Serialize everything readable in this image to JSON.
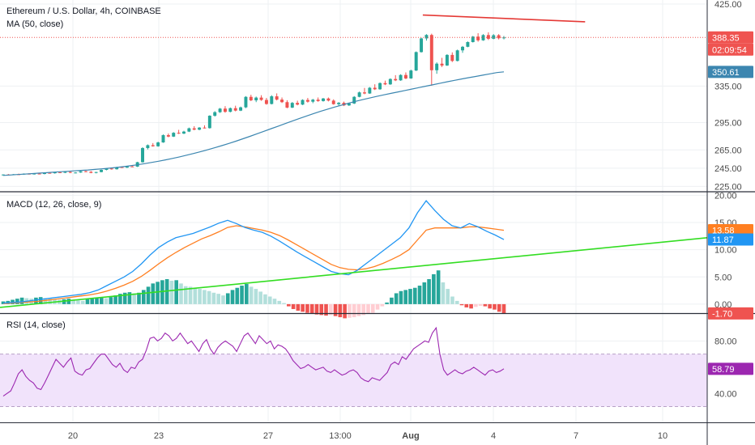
{
  "header": {
    "title": "Ethereum / U.S. Dollar, 4h, COINBASE",
    "ma_label": "MA (50, close)"
  },
  "macd_label": "MACD (12, 26, close, 9)",
  "rsi_label": "RSI (14, close)",
  "price_tags": {
    "last": "388.35",
    "countdown": "02:09:54",
    "ma": "350.61",
    "signal": "13.58",
    "macd": "11.87",
    "hist": "-1.70",
    "rsi": "58.79"
  },
  "colors": {
    "up": "#26a69a",
    "down": "#ef5350",
    "ma": "#3c86b0",
    "macd_line": "#2196f3",
    "signal_line": "#ff7f21",
    "rsi_line": "#9c27b0",
    "rsi_band": "#f1e3fb",
    "trend_red": "#e53935",
    "trend_green": "#33dd22",
    "rsi_tag": "#9c27b0"
  },
  "chart_data": [
    {
      "type": "candlestick",
      "panel": "price",
      "title": "Ethereum / U.S. Dollar, 4h, COINBASE",
      "y_ticks": [
        "425.00",
        "335.00",
        "295.00",
        "265.00",
        "245.00",
        "225.00"
      ],
      "x_ticks": [
        "20",
        "23",
        "27",
        "13:00",
        "Aug",
        "4",
        "7",
        "10"
      ],
      "candles": [
        [
          237.5,
          238.2,
          237.0,
          238.0
        ],
        [
          238.0,
          238.5,
          237.3,
          237.8
        ],
        [
          237.8,
          238.6,
          237.4,
          238.3
        ],
        [
          238.3,
          239.0,
          237.9,
          238.0
        ],
        [
          238.0,
          239.2,
          237.8,
          238.9
        ],
        [
          238.9,
          239.4,
          238.1,
          238.5
        ],
        [
          238.5,
          239.2,
          238.0,
          239.0
        ],
        [
          239.0,
          239.6,
          238.3,
          238.6
        ],
        [
          238.6,
          240.2,
          238.2,
          239.8
        ],
        [
          239.8,
          240.5,
          239.1,
          239.4
        ],
        [
          239.4,
          240.8,
          239.0,
          240.5
        ],
        [
          240.5,
          241.2,
          240.0,
          240.3
        ],
        [
          240.3,
          241.0,
          239.6,
          240.8
        ],
        [
          240.8,
          241.5,
          239.5,
          239.9
        ],
        [
          239.9,
          240.6,
          239.3,
          240.2
        ],
        [
          240.2,
          242.0,
          239.9,
          241.6
        ],
        [
          241.6,
          242.2,
          240.6,
          241.0
        ],
        [
          241.0,
          241.8,
          239.4,
          239.8
        ],
        [
          239.8,
          241.0,
          239.3,
          240.7
        ],
        [
          240.7,
          243.5,
          240.4,
          243.1
        ],
        [
          243.1,
          245.0,
          242.6,
          244.6
        ],
        [
          244.6,
          245.3,
          243.3,
          243.8
        ],
        [
          243.8,
          246.5,
          243.4,
          246.1
        ],
        [
          246.1,
          247.0,
          245.2,
          245.6
        ],
        [
          245.6,
          247.3,
          245.2,
          246.9
        ],
        [
          246.9,
          248.0,
          246.2,
          246.7
        ],
        [
          246.7,
          252.0,
          246.3,
          251.5
        ],
        [
          251.5,
          268.0,
          251.0,
          267.0
        ],
        [
          267.0,
          271.0,
          265.5,
          270.2
        ],
        [
          270.2,
          272.5,
          268.6,
          269.0
        ],
        [
          269.0,
          274.0,
          268.5,
          273.2
        ],
        [
          273.2,
          282.0,
          272.8,
          281.2
        ],
        [
          281.2,
          283.0,
          278.9,
          279.6
        ],
        [
          279.6,
          284.5,
          279.2,
          283.8
        ],
        [
          283.8,
          287.0,
          282.5,
          282.9
        ],
        [
          282.9,
          286.0,
          282.4,
          285.1
        ],
        [
          285.1,
          289.5,
          284.6,
          288.7
        ],
        [
          288.7,
          291.0,
          286.6,
          287.2
        ],
        [
          287.2,
          290.0,
          286.6,
          289.5
        ],
        [
          289.5,
          292.0,
          288.5,
          288.9
        ],
        [
          288.9,
          303.0,
          288.4,
          302.5
        ],
        [
          302.5,
          307.5,
          301.5,
          306.4
        ],
        [
          306.4,
          311.0,
          305.6,
          310.3
        ],
        [
          310.3,
          313.0,
          305.8,
          306.8
        ],
        [
          306.8,
          311.5,
          306.2,
          310.8
        ],
        [
          310.8,
          313.5,
          307.3,
          308.1
        ],
        [
          308.1,
          312.5,
          307.6,
          311.7
        ],
        [
          311.7,
          324.0,
          310.8,
          323.2
        ],
        [
          323.2,
          325.5,
          318.5,
          319.4
        ],
        [
          319.4,
          323.5,
          317.4,
          322.4
        ],
        [
          322.4,
          325.0,
          318.9,
          319.8
        ],
        [
          319.8,
          322.0,
          314.6,
          315.4
        ],
        [
          315.4,
          325.0,
          314.9,
          323.8
        ],
        [
          323.8,
          327.0,
          319.3,
          320.2
        ],
        [
          320.2,
          322.5,
          316.5,
          317.4
        ],
        [
          317.4,
          319.5,
          310.7,
          311.4
        ],
        [
          311.4,
          317.5,
          310.9,
          316.6
        ],
        [
          316.6,
          319.0,
          313.9,
          314.7
        ],
        [
          314.7,
          320.5,
          314.2,
          319.8
        ],
        [
          319.8,
          322.0,
          316.9,
          317.9
        ],
        [
          317.9,
          321.0,
          316.3,
          320.1
        ],
        [
          320.1,
          322.5,
          317.8,
          318.6
        ],
        [
          318.6,
          322.0,
          318.0,
          321.4
        ],
        [
          321.4,
          322.5,
          318.2,
          319.1
        ],
        [
          319.1,
          320.5,
          314.6,
          315.2
        ],
        [
          315.2,
          317.5,
          313.3,
          316.7
        ],
        [
          316.7,
          318.0,
          313.1,
          313.8
        ],
        [
          313.8,
          316.5,
          313.3,
          315.9
        ],
        [
          315.9,
          324.0,
          315.4,
          323.2
        ],
        [
          323.2,
          329.0,
          322.7,
          328.1
        ],
        [
          328.1,
          333.0,
          326.1,
          326.9
        ],
        [
          326.9,
          334.0,
          326.5,
          333.2
        ],
        [
          333.2,
          337.0,
          330.7,
          331.5
        ],
        [
          331.5,
          339.0,
          331.0,
          338.3
        ],
        [
          338.3,
          341.0,
          336.1,
          336.9
        ],
        [
          336.9,
          343.5,
          336.4,
          342.8
        ],
        [
          342.8,
          347.0,
          340.5,
          341.3
        ],
        [
          341.3,
          348.0,
          340.8,
          347.2
        ],
        [
          347.2,
          350.0,
          342.6,
          343.4
        ],
        [
          343.4,
          353.0,
          343.0,
          352.1
        ],
        [
          352.1,
          373.0,
          351.5,
          372.3
        ],
        [
          372.3,
          388.0,
          371.8,
          387.3
        ],
        [
          387.3,
          392.0,
          384.9,
          391.1
        ],
        [
          391.1,
          392.5,
          335.5,
          352.4
        ],
        [
          352.4,
          361.0,
          348.5,
          359.6
        ],
        [
          359.6,
          366.0,
          355.9,
          357.6
        ],
        [
          357.6,
          370.0,
          357.1,
          369.2
        ],
        [
          369.2,
          372.0,
          361.4,
          362.6
        ],
        [
          362.6,
          375.0,
          362.1,
          374.2
        ],
        [
          374.2,
          379.0,
          371.5,
          378.1
        ],
        [
          378.1,
          384.0,
          377.6,
          383.3
        ],
        [
          383.3,
          390.0,
          382.8,
          389.3
        ],
        [
          389.3,
          393.0,
          383.7,
          385.2
        ],
        [
          385.2,
          392.0,
          384.7,
          391.0
        ],
        [
          391.0,
          394.0,
          385.6,
          386.9
        ],
        [
          386.9,
          392.0,
          386.4,
          390.8
        ],
        [
          390.8,
          392.0,
          386.2,
          387.5
        ],
        [
          387.5,
          390.0,
          386.3,
          388.35
        ]
      ],
      "ma50": [
        237.0,
        237.5,
        238.0,
        238.5,
        239.0,
        239.5,
        240.0,
        240.5,
        241.0,
        241.5,
        242.0,
        242.5,
        243.0,
        243.6,
        244.2,
        244.9,
        245.7,
        246.6,
        247.6,
        248.7,
        249.9,
        251.2,
        252.6,
        254.1,
        255.7,
        257.4,
        259.2,
        261.1,
        263.1,
        265.2,
        267.4,
        269.7,
        272.1,
        274.6,
        277.2,
        279.9,
        282.7,
        285.5,
        288.3,
        291.1,
        293.9,
        296.7,
        299.5,
        302.2,
        304.8,
        307.3,
        309.7,
        312.0,
        314.2,
        316.3,
        318.3,
        320.2,
        322.0,
        323.7,
        325.4,
        327.0,
        328.6,
        330.2,
        331.8,
        333.4,
        335.0,
        336.6,
        338.2,
        339.8,
        341.3,
        342.8,
        344.2,
        345.6,
        347.0,
        348.4,
        349.8,
        350.61
      ],
      "last_price": 388.35,
      "ma_value": 350.61,
      "resistance_trendline": [
        [
          0.56,
          413.0
        ],
        [
          0.775,
          405.5
        ]
      ]
    },
    {
      "type": "macd",
      "panel": "macd",
      "title": "MACD (12, 26, close, 9)",
      "y_ticks": [
        "20.00",
        "15.00",
        "10.00",
        "5.00",
        "0.00"
      ],
      "macd": [
        0.2,
        0.3,
        0.4,
        0.6,
        0.8,
        1.0,
        1.2,
        1.4,
        1.6,
        1.8,
        2.1,
        2.6,
        3.4,
        4.2,
        5.0,
        6.0,
        7.4,
        9.0,
        10.4,
        11.4,
        12.2,
        12.6,
        13.0,
        13.6,
        14.2,
        14.9,
        15.4,
        14.8,
        14.1,
        13.6,
        13.2,
        12.5,
        11.6,
        10.6,
        9.6,
        8.7,
        7.8,
        6.9,
        6.0,
        5.6,
        5.4,
        6.2,
        7.4,
        8.6,
        9.8,
        11.0,
        12.2,
        14.0,
        16.8,
        19.0,
        17.2,
        15.6,
        14.4,
        14.0,
        14.8,
        14.2,
        13.4,
        12.7,
        11.87
      ],
      "signal": [
        0.1,
        0.2,
        0.3,
        0.4,
        0.5,
        0.7,
        0.9,
        1.1,
        1.3,
        1.5,
        1.7,
        2.0,
        2.4,
        2.9,
        3.5,
        4.2,
        5.1,
        6.2,
        7.4,
        8.5,
        9.5,
        10.4,
        11.2,
        12.0,
        12.6,
        13.3,
        14.1,
        14.4,
        14.2,
        13.9,
        13.6,
        13.2,
        12.6,
        11.8,
        10.9,
        10.0,
        9.1,
        8.2,
        7.3,
        6.7,
        6.4,
        6.3,
        6.5,
        6.9,
        7.5,
        8.2,
        9.0,
        10.0,
        11.8,
        13.6,
        14.0,
        14.0,
        14.0,
        14.0,
        14.2,
        14.2,
        14.0,
        13.8,
        13.58
      ],
      "histogram": [
        0.5,
        0.6,
        0.8,
        1.0,
        1.2,
        1.1,
        1.0,
        1.2,
        1.3,
        1.1,
        1.0,
        0.9,
        0.8,
        0.9,
        1.0,
        0.8,
        0.7,
        0.6,
        0.9,
        1.0,
        1.1,
        1.2,
        1.1,
        1.3,
        1.6,
        1.9,
        2.1,
        2.2,
        2.0,
        2.1,
        2.6,
        3.2,
        3.8,
        4.1,
        4.4,
        4.6,
        4.3,
        4.4,
        3.8,
        3.3,
        3.2,
        3.0,
        2.8,
        2.6,
        2.4,
        2.1,
        1.9,
        1.6,
        2.0,
        2.6,
        3.0,
        3.4,
        3.7,
        3.2,
        2.8,
        2.3,
        1.8,
        1.4,
        1.0,
        0.6,
        0.2,
        -0.4,
        -0.9,
        -1.2,
        -1.4,
        -1.6,
        -1.8,
        -1.9,
        -2.0,
        -2.1,
        -2.0,
        -2.2,
        -2.4,
        -2.6,
        -2.5,
        -2.4,
        -2.2,
        -2.0,
        -1.8,
        -1.6,
        -1.0,
        -0.4,
        0.3,
        1.2,
        2.0,
        2.4,
        2.6,
        2.8,
        3.0,
        3.4,
        4.0,
        4.6,
        5.5,
        6.2,
        4.0,
        2.8,
        1.4,
        0.6,
        -0.2,
        -0.6,
        -0.8,
        -0.5,
        -0.3,
        -0.4,
        -0.8,
        -1.0,
        -1.4,
        -1.7
      ],
      "trendline_value_range": [
        -0.6,
        12.2
      ],
      "macd_value": 11.87,
      "signal_value": 13.58,
      "hist_value": -1.7
    },
    {
      "type": "line",
      "panel": "rsi",
      "title": "RSI (14, close)",
      "y_ticks": [
        "80.00",
        "40.00"
      ],
      "band": [
        30,
        70
      ],
      "series": [
        {
          "values": [
            38,
            40,
            42,
            48,
            55,
            58,
            53,
            50,
            48,
            44,
            43,
            48,
            54,
            60,
            66,
            63,
            60,
            64,
            67,
            57,
            55,
            54,
            58,
            59,
            63,
            67,
            70,
            70,
            66,
            62,
            60,
            63,
            58,
            56,
            60,
            59,
            64,
            66,
            73,
            82,
            83,
            80,
            82,
            86,
            84,
            80,
            82,
            86,
            82,
            78,
            80,
            76,
            72,
            78,
            81,
            74,
            70,
            75,
            78,
            80,
            78,
            76,
            72,
            78,
            84,
            86,
            82,
            78,
            84,
            81,
            78,
            80,
            74,
            77,
            76,
            74,
            70,
            65,
            62,
            59,
            60,
            62,
            60,
            58,
            59,
            60,
            57,
            56,
            58,
            56,
            54,
            55,
            57,
            58,
            56,
            52,
            50,
            49,
            52,
            51,
            50,
            53,
            56,
            62,
            64,
            62,
            68,
            66,
            70,
            74,
            76,
            78,
            80,
            79,
            86,
            90,
            70,
            58,
            54,
            56,
            58,
            56,
            55,
            57,
            58,
            60,
            58,
            56,
            54,
            57,
            58,
            56,
            57,
            58.79
          ]
        }
      ],
      "rsi_value": 58.79
    }
  ]
}
